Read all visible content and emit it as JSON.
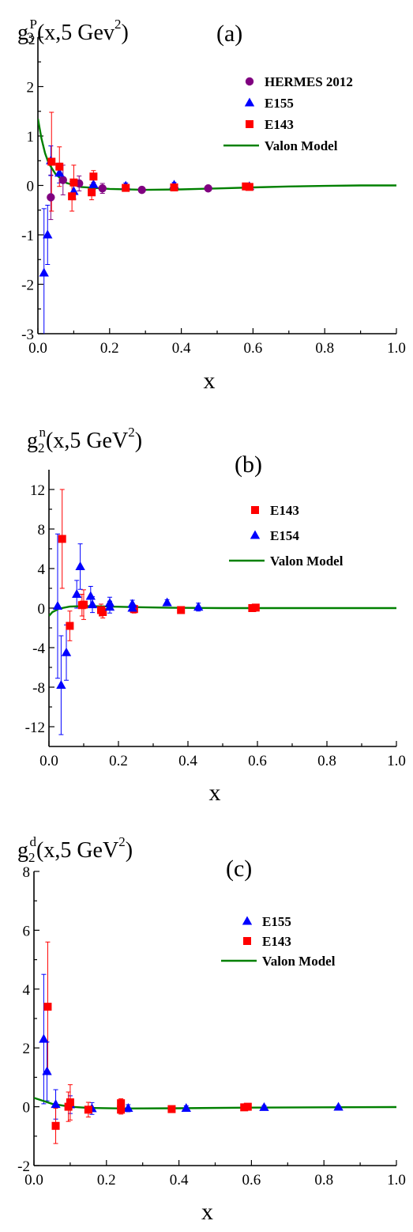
{
  "chart_data": [
    {
      "type": "scatter",
      "panel_label": "(a)",
      "ylabel_parts": [
        "g",
        "2",
        "P",
        "(x,5 Gev",
        "2",
        ")"
      ],
      "xlabel": "x",
      "xlim": [
        0,
        1.0
      ],
      "ylim": [
        -3,
        3
      ],
      "xticks": [
        "0.0",
        "0.2",
        "0.4",
        "0.6",
        "0.8",
        "1.0"
      ],
      "yticks": [
        "-3",
        "-2",
        "-1",
        "0",
        "1",
        "2",
        "3"
      ],
      "legend_position": "top-right",
      "series": [
        {
          "name": "HERMES 2012",
          "marker": "circle",
          "color": "#800080",
          "points": [
            {
              "x": 0.036,
              "y": -0.24,
              "err": 0.45
            },
            {
              "x": 0.07,
              "y": 0.11,
              "err": 0.3
            },
            {
              "x": 0.115,
              "y": 0.04,
              "err": 0.15
            },
            {
              "x": 0.18,
              "y": -0.06,
              "err": 0.1
            },
            {
              "x": 0.29,
              "y": -0.09,
              "err": 0.06
            },
            {
              "x": 0.475,
              "y": -0.06,
              "err": 0.05
            }
          ]
        },
        {
          "name": "E155",
          "marker": "triangle",
          "color": "#0000ff",
          "points": [
            {
              "x": 0.017,
              "y": -1.77,
              "err": 1.3
            },
            {
              "x": 0.027,
              "y": -1.0,
              "err": 0.6
            },
            {
              "x": 0.036,
              "y": 0.5,
              "err": 0.3
            },
            {
              "x": 0.06,
              "y": 0.25,
              "err": 0.2
            },
            {
              "x": 0.1,
              "y": -0.12,
              "err": 0.15
            },
            {
              "x": 0.155,
              "y": 0.02,
              "err": 0.1
            },
            {
              "x": 0.245,
              "y": -0.01,
              "err": 0.06
            },
            {
              "x": 0.38,
              "y": 0.01,
              "err": 0.05
            },
            {
              "x": 0.59,
              "y": -0.02,
              "err": 0.04
            }
          ]
        },
        {
          "name": "E143",
          "marker": "square",
          "color": "#ff0000",
          "points": [
            {
              "x": 0.038,
              "y": 0.48,
              "err": 1.0
            },
            {
              "x": 0.06,
              "y": 0.38,
              "err": 0.4
            },
            {
              "x": 0.095,
              "y": -0.22,
              "err": 0.3
            },
            {
              "x": 0.1,
              "y": 0.06,
              "err": 0.35
            },
            {
              "x": 0.15,
              "y": -0.14,
              "err": 0.15
            },
            {
              "x": 0.155,
              "y": 0.18,
              "err": 0.12
            },
            {
              "x": 0.245,
              "y": -0.05,
              "err": 0.06
            },
            {
              "x": 0.38,
              "y": -0.04,
              "err": 0.05
            },
            {
              "x": 0.58,
              "y": -0.02,
              "err": 0.04
            },
            {
              "x": 0.59,
              "y": -0.03,
              "err": 0.04
            }
          ]
        },
        {
          "name": "Valon Model",
          "marker": "line",
          "color": "#008000",
          "points": [
            {
              "x": 0.0,
              "y": 1.35
            },
            {
              "x": 0.01,
              "y": 0.95
            },
            {
              "x": 0.02,
              "y": 0.65
            },
            {
              "x": 0.03,
              "y": 0.45
            },
            {
              "x": 0.05,
              "y": 0.22
            },
            {
              "x": 0.08,
              "y": 0.05
            },
            {
              "x": 0.12,
              "y": -0.03
            },
            {
              "x": 0.2,
              "y": -0.07
            },
            {
              "x": 0.3,
              "y": -0.09
            },
            {
              "x": 0.4,
              "y": -0.08
            },
            {
              "x": 0.5,
              "y": -0.06
            },
            {
              "x": 0.6,
              "y": -0.04
            },
            {
              "x": 0.7,
              "y": -0.02
            },
            {
              "x": 0.8,
              "y": -0.01
            },
            {
              "x": 0.9,
              "y": 0.0
            },
            {
              "x": 1.0,
              "y": 0.0
            }
          ]
        }
      ]
    },
    {
      "type": "scatter",
      "panel_label": "(b)",
      "ylabel_parts": [
        "g",
        "2",
        "n",
        "(x,5 GeV",
        "2",
        ")"
      ],
      "xlabel": "x",
      "xlim": [
        0,
        1.0
      ],
      "ylim": [
        -14,
        14
      ],
      "xticks": [
        "0.0",
        "0.2",
        "0.4",
        "0.6",
        "0.8",
        "1.0"
      ],
      "yticks": [
        "-12",
        "-8",
        "-4",
        "0",
        "4",
        "8",
        "12"
      ],
      "legend_position": "top-right",
      "series": [
        {
          "name": "E143",
          "marker": "square",
          "color": "#ff0000",
          "points": [
            {
              "x": 0.038,
              "y": 7.0,
              "err": 5.0
            },
            {
              "x": 0.06,
              "y": -1.8,
              "err": 1.5
            },
            {
              "x": 0.095,
              "y": 0.3,
              "err": 1.1
            },
            {
              "x": 0.1,
              "y": 0.35,
              "err": 1.5
            },
            {
              "x": 0.15,
              "y": -0.2,
              "err": 0.6
            },
            {
              "x": 0.155,
              "y": -0.4,
              "err": 0.6
            },
            {
              "x": 0.245,
              "y": -0.1,
              "err": 0.4
            },
            {
              "x": 0.38,
              "y": -0.2,
              "err": 0.3
            },
            {
              "x": 0.585,
              "y": 0.0,
              "err": 0.2
            },
            {
              "x": 0.595,
              "y": 0.05,
              "err": 0.2
            }
          ]
        },
        {
          "name": "E154",
          "marker": "triangle",
          "color": "#0000ff",
          "points": [
            {
              "x": 0.025,
              "y": 0.2,
              "err": 7.3
            },
            {
              "x": 0.035,
              "y": -7.8,
              "err": 5.0
            },
            {
              "x": 0.05,
              "y": -4.5,
              "err": 2.8
            },
            {
              "x": 0.08,
              "y": 1.4,
              "err": 1.4
            },
            {
              "x": 0.09,
              "y": 4.2,
              "err": 2.3
            },
            {
              "x": 0.12,
              "y": 1.2,
              "err": 1.0
            },
            {
              "x": 0.125,
              "y": 0.35,
              "err": 0.8
            },
            {
              "x": 0.175,
              "y": 0.1,
              "err": 0.6
            },
            {
              "x": 0.175,
              "y": 0.5,
              "err": 0.6
            },
            {
              "x": 0.24,
              "y": 0.4,
              "err": 0.4
            },
            {
              "x": 0.24,
              "y": 0.0,
              "err": 0.4
            },
            {
              "x": 0.34,
              "y": 0.55,
              "err": 0.3
            },
            {
              "x": 0.43,
              "y": 0.1,
              "err": 0.4
            }
          ]
        },
        {
          "name": "Valon Model",
          "marker": "line",
          "color": "#008000",
          "points": [
            {
              "x": 0.0,
              "y": -0.8
            },
            {
              "x": 0.01,
              "y": -0.4
            },
            {
              "x": 0.03,
              "y": -0.05
            },
            {
              "x": 0.06,
              "y": 0.15
            },
            {
              "x": 0.1,
              "y": 0.2
            },
            {
              "x": 0.15,
              "y": 0.18
            },
            {
              "x": 0.25,
              "y": 0.1
            },
            {
              "x": 0.35,
              "y": 0.03
            },
            {
              "x": 0.5,
              "y": 0.0
            },
            {
              "x": 0.7,
              "y": 0.0
            },
            {
              "x": 1.0,
              "y": 0.0
            }
          ]
        }
      ]
    },
    {
      "type": "scatter",
      "panel_label": "(c)",
      "ylabel_parts": [
        "g",
        "2",
        "d",
        "(x,5 GeV",
        "2",
        ")"
      ],
      "xlabel": "x",
      "xlim": [
        0,
        1.0
      ],
      "ylim": [
        -2,
        8
      ],
      "xticks": [
        "0.0",
        "0.2",
        "0.4",
        "0.6",
        "0.8",
        "1.0"
      ],
      "yticks": [
        "-2",
        "0",
        "2",
        "4",
        "6",
        "8"
      ],
      "legend_position": "top-right",
      "series": [
        {
          "name": "E155",
          "marker": "triangle",
          "color": "#0000ff",
          "points": [
            {
              "x": 0.027,
              "y": 2.3,
              "err": 2.2
            },
            {
              "x": 0.036,
              "y": 1.2,
              "err": 1.0
            },
            {
              "x": 0.06,
              "y": 0.08,
              "err": 0.5
            },
            {
              "x": 0.1,
              "y": 0.07,
              "err": 0.3
            },
            {
              "x": 0.16,
              "y": -0.06,
              "err": 0.2
            },
            {
              "x": 0.26,
              "y": -0.05,
              "err": 0.12
            },
            {
              "x": 0.42,
              "y": -0.05,
              "err": 0.08
            },
            {
              "x": 0.635,
              "y": -0.02,
              "err": 0.06
            },
            {
              "x": 0.84,
              "y": -0.01,
              "err": 0.05
            }
          ]
        },
        {
          "name": "E143",
          "marker": "square",
          "color": "#ff0000",
          "points": [
            {
              "x": 0.038,
              "y": 3.4,
              "err": 2.2
            },
            {
              "x": 0.06,
              "y": -0.65,
              "err": 0.6
            },
            {
              "x": 0.095,
              "y": 0.0,
              "err": 0.5
            },
            {
              "x": 0.1,
              "y": 0.15,
              "err": 0.6
            },
            {
              "x": 0.15,
              "y": -0.1,
              "err": 0.25
            },
            {
              "x": 0.24,
              "y": 0.12,
              "err": 0.15
            },
            {
              "x": 0.24,
              "y": -0.1,
              "err": 0.15
            },
            {
              "x": 0.38,
              "y": -0.08,
              "err": 0.1
            },
            {
              "x": 0.58,
              "y": -0.02,
              "err": 0.08
            },
            {
              "x": 0.59,
              "y": 0.0,
              "err": 0.08
            }
          ]
        },
        {
          "name": "Valon Model",
          "marker": "line",
          "color": "#008000",
          "points": [
            {
              "x": 0.0,
              "y": 0.3
            },
            {
              "x": 0.02,
              "y": 0.22
            },
            {
              "x": 0.05,
              "y": 0.1
            },
            {
              "x": 0.1,
              "y": 0.0
            },
            {
              "x": 0.15,
              "y": -0.04
            },
            {
              "x": 0.25,
              "y": -0.06
            },
            {
              "x": 0.4,
              "y": -0.05
            },
            {
              "x": 0.6,
              "y": -0.03
            },
            {
              "x": 0.8,
              "y": -0.02
            },
            {
              "x": 1.0,
              "y": -0.01
            }
          ]
        }
      ]
    }
  ]
}
